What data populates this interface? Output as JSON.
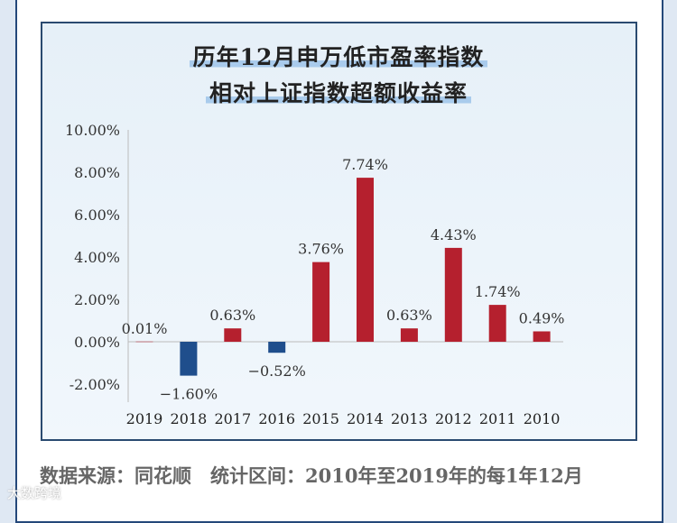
{
  "title_line1": "历年12月申万低市盈率指数",
  "title_line2": "相对上证指数超额收益率",
  "footer": "数据来源：同花顺　统计区间：2010年至2019年的每1年12月",
  "watermark": "大数跨境",
  "colors": {
    "positive": "#b5202e",
    "negative": "#1f4e8c"
  },
  "chart_data": {
    "type": "bar",
    "title": "历年12月申万低市盈率指数相对上证指数超额收益率",
    "categories": [
      "2019",
      "2018",
      "2017",
      "2016",
      "2015",
      "2014",
      "2013",
      "2012",
      "2011",
      "2010"
    ],
    "values": [
      0.01,
      -1.6,
      0.63,
      -0.52,
      3.76,
      7.74,
      0.63,
      4.43,
      1.74,
      0.49
    ],
    "labels": [
      "0.01%",
      "−1.60%",
      "0.63%",
      "−0.52%",
      "3.76%",
      "7.74%",
      "0.63%",
      "4.43%",
      "1.74%",
      "0.49%"
    ],
    "yticks": [
      "10.00%",
      "8.00%",
      "6.00%",
      "4.00%",
      "2.00%",
      "0.00%",
      "-2.00%"
    ],
    "ytick_values": [
      10,
      8,
      6,
      4,
      2,
      0,
      -2
    ],
    "ylim": [
      -2,
      10
    ],
    "xlabel": "",
    "ylabel": ""
  }
}
